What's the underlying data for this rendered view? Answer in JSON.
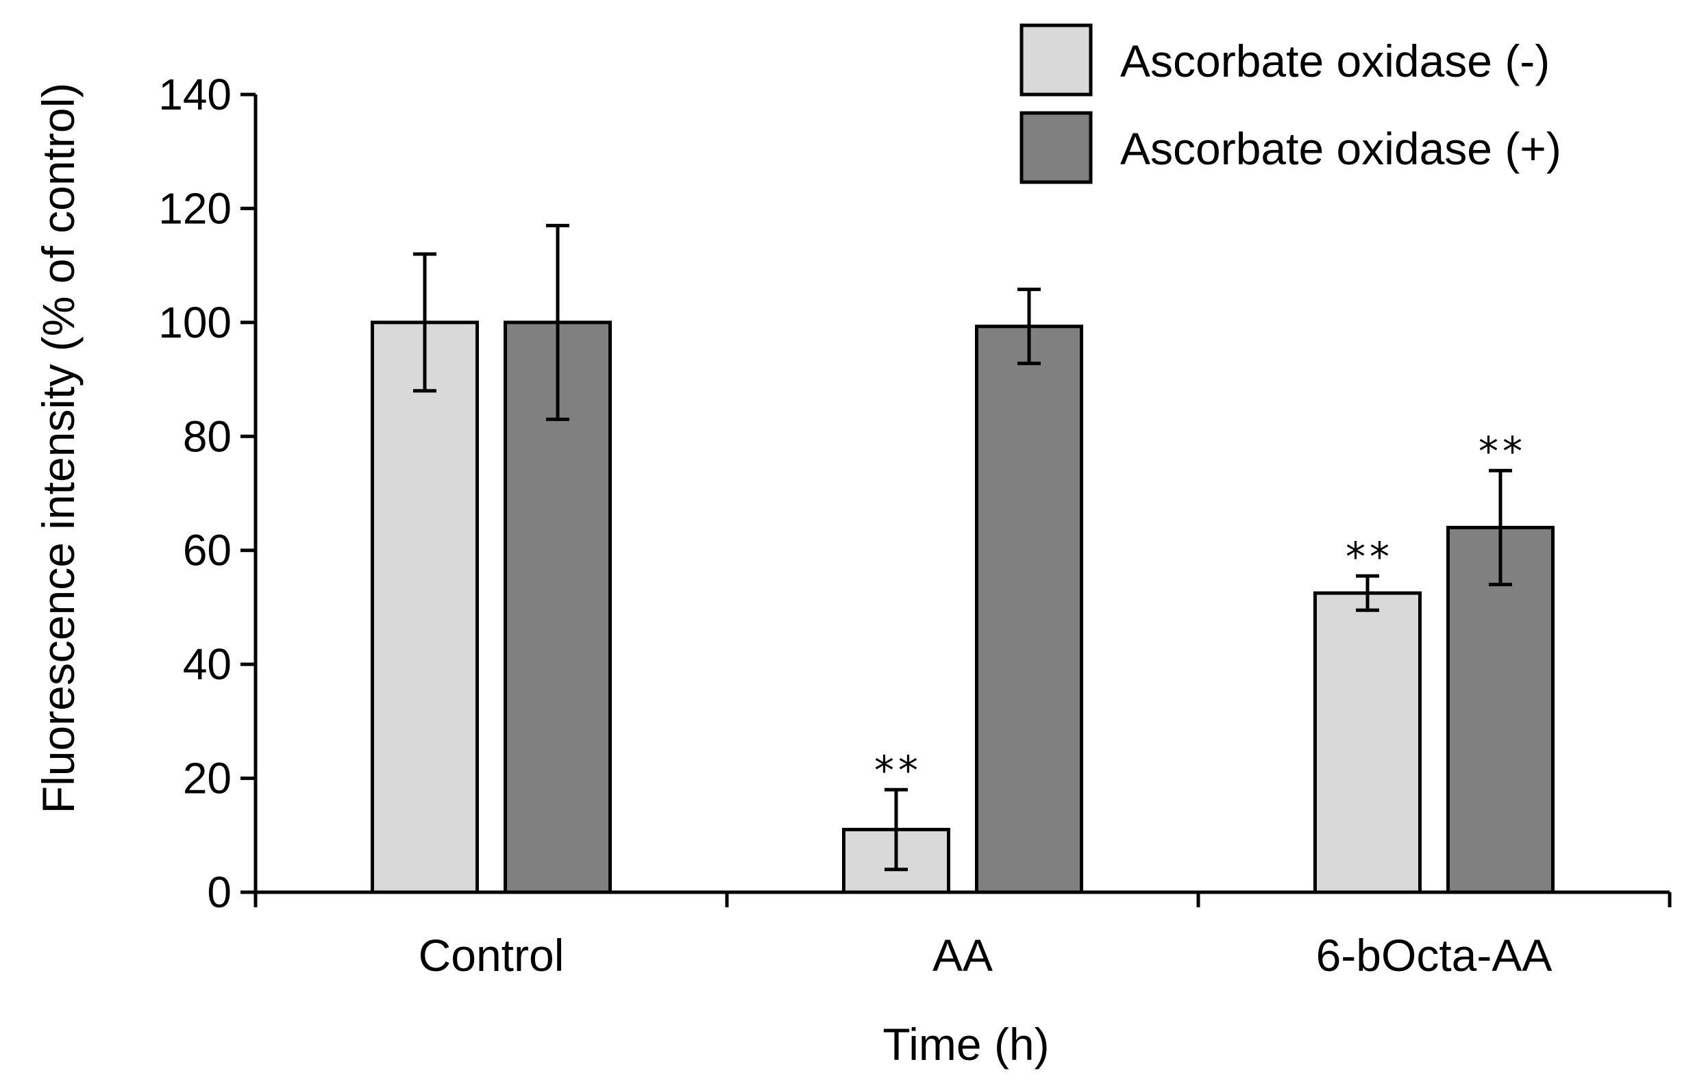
{
  "chart_data": {
    "type": "bar",
    "categories": [
      "Control",
      "AA",
      "6-bOcta-AA"
    ],
    "series": [
      {
        "name": "Ascorbate oxidase (-)",
        "color": "#d9d9d9",
        "values": [
          100,
          11,
          52.5
        ],
        "errors": [
          12,
          7,
          3
        ],
        "annotations": [
          "",
          "**",
          "**"
        ]
      },
      {
        "name": "Ascorbate oxidase (+)",
        "color": "#808080",
        "values": [
          100,
          99.3,
          64
        ],
        "errors": [
          17,
          6.5,
          10
        ],
        "annotations": [
          "",
          "",
          "**"
        ]
      }
    ],
    "xlabel": "Time (h)",
    "ylabel": "Fluorescence intensity (% of control)",
    "ylim": [
      0,
      140
    ],
    "yticks": [
      0,
      20,
      40,
      60,
      80,
      100,
      120,
      140
    ],
    "grid": false,
    "legend_position": "top-right"
  }
}
